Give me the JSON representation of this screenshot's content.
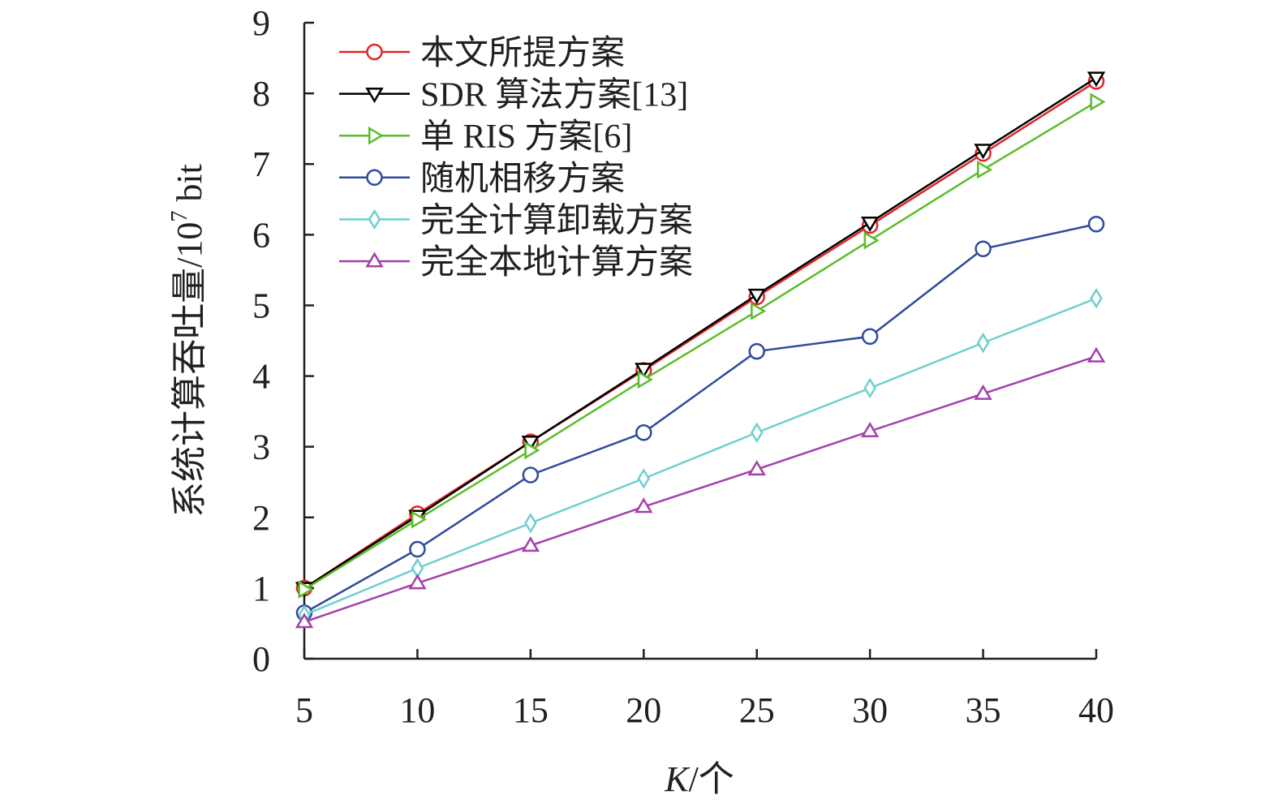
{
  "chart_data": {
    "type": "line",
    "xlabel_italic": "K",
    "xlabel_rest": "/个",
    "ylabel_main": "系统计算吞吐量/10",
    "ylabel_sup": "7",
    "ylabel_unit": " bit",
    "x": [
      5,
      10,
      15,
      20,
      25,
      30,
      35,
      40
    ],
    "xlim": [
      5,
      40
    ],
    "ylim": [
      0,
      9
    ],
    "yticks": [
      0,
      1,
      2,
      3,
      4,
      5,
      6,
      7,
      8,
      9
    ],
    "legend_position": "top-left",
    "grid": false,
    "series": [
      {
        "name": "本文所提方案",
        "color": "#e02525",
        "marker": "circle",
        "values": [
          1.0,
          2.05,
          3.07,
          4.08,
          5.12,
          6.13,
          7.15,
          8.17
        ]
      },
      {
        "name": "SDR 算法方案[13]",
        "color": "#000000",
        "marker": "triangle-down",
        "values": [
          1.0,
          2.02,
          3.07,
          4.1,
          5.15,
          6.17,
          7.2,
          8.22
        ]
      },
      {
        "name": "单 RIS 方案[6]",
        "color": "#5bbd2b",
        "marker": "triangle-right",
        "values": [
          0.98,
          1.97,
          2.95,
          3.95,
          4.92,
          5.92,
          6.92,
          7.88
        ]
      },
      {
        "name": "随机相移方案",
        "color": "#2e4b9b",
        "marker": "circle",
        "values": [
          0.65,
          1.55,
          2.6,
          3.2,
          4.35,
          4.56,
          5.8,
          6.15
        ]
      },
      {
        "name": "完全计算卸载方案",
        "color": "#6fcfcf",
        "marker": "diamond",
        "values": [
          0.62,
          1.28,
          1.92,
          2.55,
          3.2,
          3.83,
          4.47,
          5.1
        ]
      },
      {
        "name": "完全本地计算方案",
        "color": "#a340a8",
        "marker": "triangle-up",
        "values": [
          0.52,
          1.07,
          1.6,
          2.15,
          2.68,
          3.22,
          3.75,
          4.28
        ]
      }
    ]
  }
}
